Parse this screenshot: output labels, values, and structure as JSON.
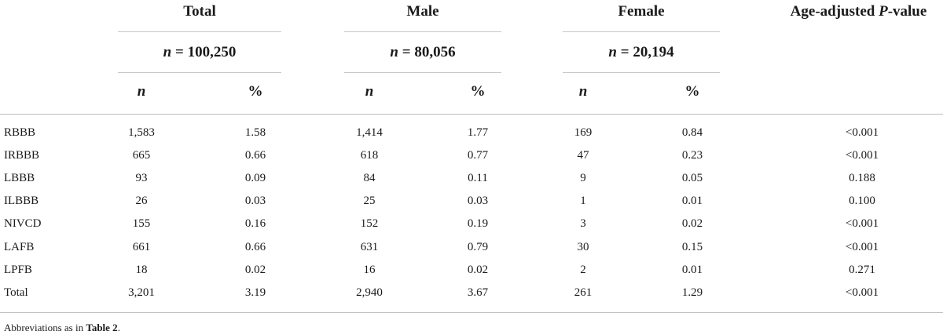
{
  "groups": [
    {
      "name": "Total",
      "n_label": "n",
      "n_value": "= 100,250"
    },
    {
      "name": "Male",
      "n_label": "n",
      "n_value": "= 80,056"
    },
    {
      "name": "Female",
      "n_label": "n",
      "n_value": "= 20,194"
    }
  ],
  "pvalue_header": {
    "prefix": "Age-adjusted ",
    "italic": "P",
    "suffix": "-value"
  },
  "subheaders": {
    "n": "n",
    "pct": "%"
  },
  "rows": [
    {
      "label": "RBBB",
      "cells": [
        "1,583",
        "1.58",
        "1,414",
        "1.77",
        "169",
        "0.84"
      ],
      "p": "<0.001"
    },
    {
      "label": "IRBBB",
      "cells": [
        "665",
        "0.66",
        "618",
        "0.77",
        "47",
        "0.23"
      ],
      "p": "<0.001"
    },
    {
      "label": "LBBB",
      "cells": [
        "93",
        "0.09",
        "84",
        "0.11",
        "9",
        "0.05"
      ],
      "p": "0.188"
    },
    {
      "label": "ILBBB",
      "cells": [
        "26",
        "0.03",
        "25",
        "0.03",
        "1",
        "0.01"
      ],
      "p": "0.100"
    },
    {
      "label": "NIVCD",
      "cells": [
        "155",
        "0.16",
        "152",
        "0.19",
        "3",
        "0.02"
      ],
      "p": "<0.001"
    },
    {
      "label": "LAFB",
      "cells": [
        "661",
        "0.66",
        "631",
        "0.79",
        "30",
        "0.15"
      ],
      "p": "<0.001"
    },
    {
      "label": "LPFB",
      "cells": [
        "18",
        "0.02",
        "16",
        "0.02",
        "2",
        "0.01"
      ],
      "p": "0.271"
    },
    {
      "label": "Total",
      "cells": [
        "3,201",
        "3.19",
        "2,940",
        "3.67",
        "261",
        "1.29"
      ],
      "p": "<0.001"
    }
  ],
  "footnote": {
    "text": "Abbreviations as in ",
    "ref": "Table 2",
    "end": "."
  }
}
